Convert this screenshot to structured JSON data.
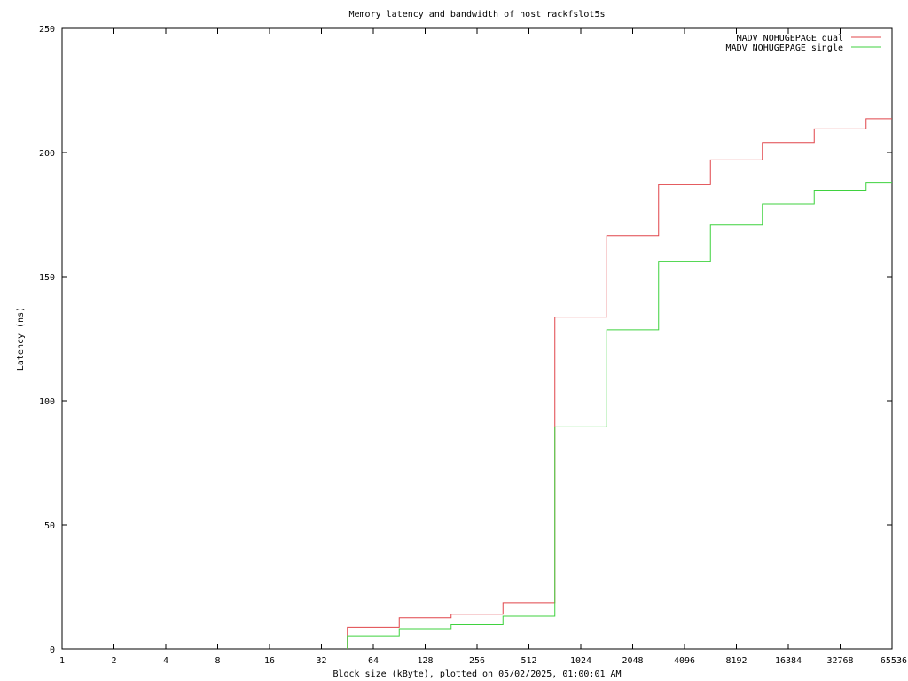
{
  "chart_data": {
    "type": "line",
    "title": "Memory latency and bandwidth of host rackfslot5s",
    "xlabel": "Block size (kByte), plotted on 05/02/2025, 01:00:01 AM",
    "ylabel": "Latency (ns)",
    "x_scale": "log2",
    "xlim": [
      1,
      65536
    ],
    "ylim": [
      0,
      250
    ],
    "x_ticks": [
      "1",
      "2",
      "4",
      "8",
      "16",
      "32",
      "64",
      "128",
      "256",
      "512",
      "1024",
      "2048",
      "4096",
      "8192",
      "16384",
      "32768",
      "65536"
    ],
    "y_ticks": [
      "0",
      "50",
      "100",
      "150",
      "200",
      "250"
    ],
    "grid": false,
    "legend_position": "top-right",
    "step_style": "steps-after",
    "series": [
      {
        "name": "MADV NOHUGEPAGE dual",
        "color": "#e0454a",
        "x": [
          45.25,
          90.51,
          181.02,
          362.04,
          724.08,
          1448.15,
          2896.31,
          5792.62,
          11585.24,
          23170.48,
          46340.95,
          65536
        ],
        "y": [
          8.8,
          12.6,
          14.0,
          18.6,
          133.7,
          166.5,
          187.0,
          197.0,
          204.0,
          209.5,
          213.6,
          213.6
        ]
      },
      {
        "name": "MADV NOHUGEPAGE single",
        "color": "#3fd23f",
        "x": [
          45.25,
          90.51,
          181.02,
          362.04,
          724.08,
          1448.15,
          2896.31,
          5792.62,
          11585.24,
          23170.48,
          46340.95,
          65536
        ],
        "y": [
          5.3,
          8.2,
          9.8,
          13.2,
          89.5,
          128.6,
          156.2,
          170.8,
          179.3,
          184.8,
          188.0,
          188.0
        ]
      }
    ]
  }
}
